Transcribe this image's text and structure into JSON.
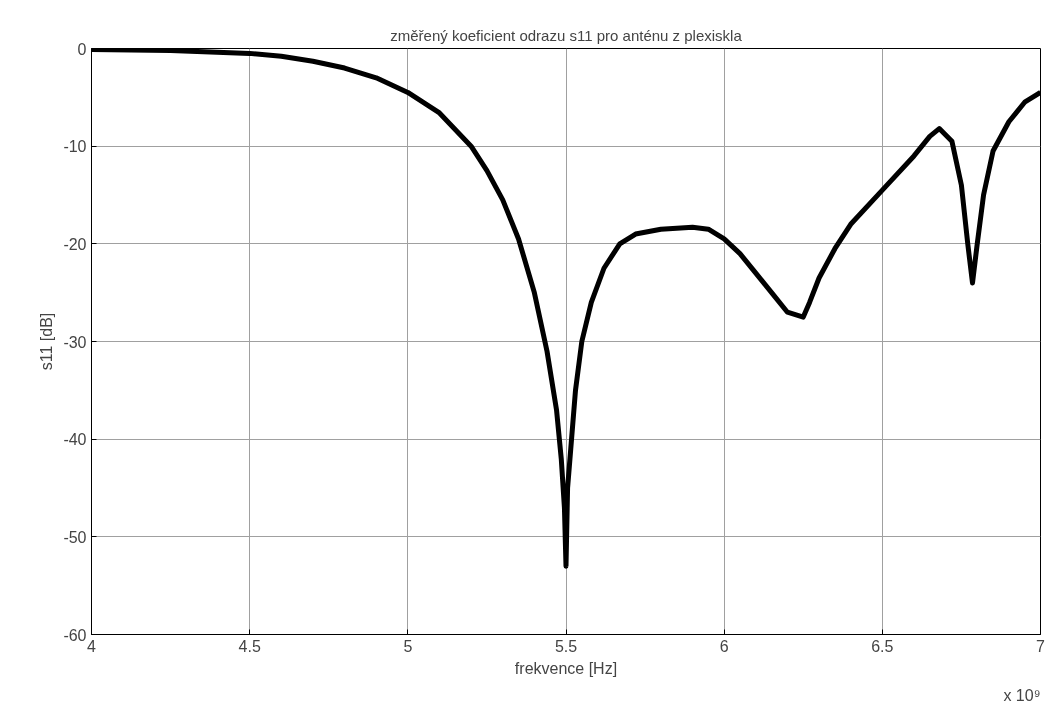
{
  "chart_data": {
    "type": "line",
    "title": "změřený koeficient odrazu s11 pro anténu z plexiskla",
    "xlabel": "frekvence [Hz]",
    "ylabel": "s11 [dB]",
    "annotations": [
      "x 10⁹"
    ],
    "x": [
      4.0,
      4.25,
      4.5,
      4.6,
      4.7,
      4.8,
      4.9,
      5.0,
      5.1,
      5.2,
      5.25,
      5.3,
      5.35,
      5.4,
      5.44,
      5.47,
      5.485,
      5.495,
      5.5,
      5.505,
      5.515,
      5.53,
      5.55,
      5.58,
      5.62,
      5.67,
      5.72,
      5.8,
      5.9,
      5.95,
      6.0,
      6.05,
      6.1,
      6.15,
      6.2,
      6.25,
      6.27,
      6.3,
      6.35,
      6.4,
      6.5,
      6.6,
      6.65,
      6.68,
      6.72,
      6.75,
      6.77,
      6.785,
      6.8,
      6.82,
      6.85,
      6.9,
      6.95,
      7.0
    ],
    "series": [
      {
        "color": "#000000",
        "values": [
          -0.1,
          -0.2,
          -0.5,
          -0.8,
          -1.3,
          -2.0,
          -3.0,
          -4.5,
          -6.6,
          -10,
          -12.5,
          -15.5,
          -19.5,
          -25,
          -31,
          -37,
          -42,
          -47,
          -53,
          -45,
          -41,
          -35,
          -30,
          -26,
          -22.5,
          -20,
          -19,
          -18.5,
          -18.3,
          -18.5,
          -19.5,
          -21,
          -23,
          -25,
          -27,
          -27.5,
          -26,
          -23.5,
          -20.5,
          -18,
          -14.5,
          -11,
          -9,
          -8.2,
          -9.5,
          -14,
          -20,
          -24,
          -20,
          -15,
          -10.5,
          -7.5,
          -5.5,
          -4.5
        ]
      }
    ],
    "xlim": [
      4,
      7
    ],
    "ylim": [
      -60,
      0
    ],
    "xticks": [
      4,
      4.5,
      5,
      5.5,
      6,
      6.5,
      7
    ],
    "yticks": [
      -60,
      -50,
      -40,
      -30,
      -20,
      -10,
      0
    ],
    "grid": true,
    "line_style": "solid"
  }
}
